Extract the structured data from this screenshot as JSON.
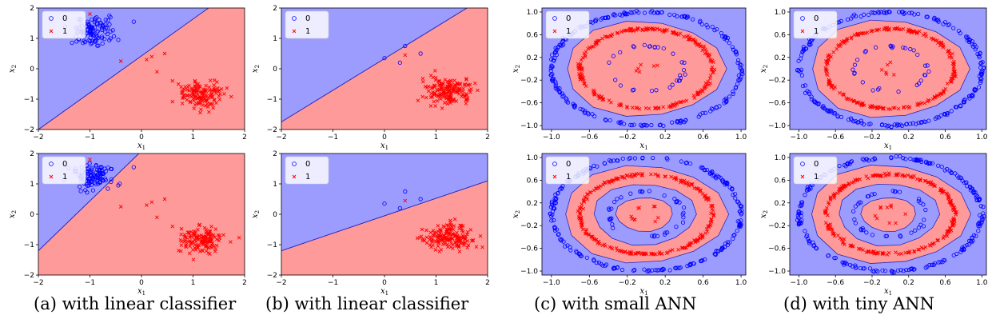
{
  "legend_labels": [
    "0",
    "1"
  ],
  "colors": {
    "class0_fill": "#9c9cff",
    "class1_fill": "#ff9a9a",
    "class0_mark": "#0000ff",
    "class1_mark": "#ff0000",
    "boundary": "#2a2ab8"
  },
  "captions": [
    "(a) with linear classifier",
    "(b) with linear classifier",
    "(c) with small ANN",
    "(d) with tiny ANN"
  ],
  "chart_data": [
    {
      "type": "scatter",
      "panel": "a-top",
      "xlabel": "x1",
      "ylabel": "x2",
      "xlim": [
        -2,
        2
      ],
      "ylim": [
        -2,
        2
      ],
      "xticks": [
        "−2",
        "−1",
        "0",
        "1",
        "2"
      ],
      "yticks": [
        "−2",
        "−1",
        "0",
        "1",
        "2"
      ],
      "decision_boundary": [
        [
          -2.0,
          -2.0
        ],
        [
          1.3,
          2.0
        ]
      ],
      "legend": "top-left",
      "series": [
        {
          "name": "0",
          "marker": "o",
          "cluster": {
            "center": [
              -0.9,
              1.25
            ],
            "spread": [
              0.2,
              0.22
            ],
            "count": 110
          },
          "outliers": [
            [
              -0.15,
              1.55
            ],
            [
              -0.45,
              0.95
            ]
          ]
        },
        {
          "name": "1",
          "marker": "x",
          "cluster": {
            "center": [
              1.2,
              -0.85
            ],
            "spread": [
              0.22,
              0.2
            ],
            "count": 140
          },
          "outliers": [
            [
              -1.0,
              1.8
            ],
            [
              -0.4,
              0.25
            ],
            [
              0.1,
              0.3
            ],
            [
              0.45,
              0.5
            ],
            [
              0.3,
              -0.1
            ],
            [
              0.6,
              -0.4
            ],
            [
              0.9,
              -0.6
            ],
            [
              0.2,
              0.4
            ]
          ]
        }
      ]
    },
    {
      "type": "scatter",
      "panel": "b-top",
      "xlabel": "x1",
      "ylabel": "x2",
      "xlim": [
        -2,
        2
      ],
      "ylim": [
        -2,
        2
      ],
      "xticks": [
        "−2",
        "−1",
        "0",
        "1",
        "2"
      ],
      "yticks": [
        "−2",
        "−1",
        "0",
        "1",
        "2"
      ],
      "decision_boundary": [
        [
          -2.0,
          -1.75
        ],
        [
          1.6,
          2.0
        ]
      ],
      "legend": "top-left",
      "series": [
        {
          "name": "0",
          "marker": "o",
          "cluster": null,
          "outliers": [
            [
              0.0,
              0.35
            ],
            [
              0.3,
              0.2
            ],
            [
              0.4,
              0.75
            ],
            [
              0.7,
              0.5
            ]
          ]
        },
        {
          "name": "1",
          "marker": "x",
          "cluster": {
            "center": [
              1.25,
              -0.75
            ],
            "spread": [
              0.24,
              0.22
            ],
            "count": 170
          },
          "outliers": [
            [
              0.4,
              0.45
            ]
          ]
        }
      ]
    },
    {
      "type": "scatter",
      "panel": "c-top",
      "xlabel": "x1",
      "ylabel": "x2",
      "xlim": [
        -1.1,
        1.05
      ],
      "ylim": [
        -1.07,
        1.07
      ],
      "xticks": [
        "−1.0",
        "−0.6",
        "−0.2",
        "0.2",
        "0.6",
        "1.0"
      ],
      "yticks": [
        "−1.0",
        "−0.6",
        "−0.2",
        "0.2",
        "0.6",
        "1.0"
      ],
      "legend": "top-left",
      "series": [
        {
          "name": "0",
          "marker": "o",
          "rings": [
            {
              "radius": 1.0,
              "count": 220
            },
            {
              "radius": 0.4,
              "count": 30
            }
          ]
        },
        {
          "name": "1",
          "marker": "x",
          "rings": [
            {
              "radius": 0.7,
              "count": 230
            },
            {
              "radius": 0.1,
              "count": 6
            }
          ]
        }
      ],
      "regions": [
        {
          "class": "1",
          "radius": 0.84
        },
        {
          "class": "0",
          "radius": 0.0
        }
      ]
    },
    {
      "type": "scatter",
      "panel": "d-top",
      "xlabel": "x1",
      "ylabel": "x2",
      "xlim": [
        -1.1,
        1.05
      ],
      "ylim": [
        -1.07,
        1.07
      ],
      "xticks": [
        "−1.0",
        "−0.6",
        "−0.2",
        "0.2",
        "0.6",
        "1.0"
      ],
      "yticks": [
        "−1.0",
        "−0.6",
        "−0.2",
        "0.2",
        "0.6",
        "1.0"
      ],
      "legend": "top-left",
      "series": [
        {
          "name": "0",
          "marker": "o",
          "rings": [
            {
              "radius": 1.0,
              "count": 220
            },
            {
              "radius": 0.4,
              "count": 30
            }
          ]
        },
        {
          "name": "1",
          "marker": "x",
          "rings": [
            {
              "radius": 0.7,
              "count": 230
            },
            {
              "radius": 0.1,
              "count": 6
            }
          ]
        }
      ],
      "regions": [
        {
          "class": "1",
          "radius": 0.86
        },
        {
          "class": "0",
          "radius": 0.0
        }
      ]
    },
    {
      "type": "scatter",
      "panel": "a-bottom",
      "xlabel": "x1",
      "ylabel": "x2",
      "xlim": [
        -2,
        2
      ],
      "ylim": [
        -2,
        2
      ],
      "xticks": [
        "−2",
        "−1",
        "0",
        "1",
        "2"
      ],
      "yticks": [
        "−2",
        "−1",
        "0",
        "1",
        "2"
      ],
      "decision_boundary": [
        [
          -2.0,
          -1.2
        ],
        [
          -0.05,
          2.0
        ]
      ],
      "legend": "top-left",
      "series": [
        {
          "name": "0",
          "marker": "o",
          "cluster": {
            "center": [
              -0.9,
              1.25
            ],
            "spread": [
              0.2,
              0.22
            ],
            "count": 110
          },
          "outliers": [
            [
              -0.15,
              1.55
            ],
            [
              -0.45,
              0.95
            ]
          ]
        },
        {
          "name": "1",
          "marker": "x",
          "cluster": {
            "center": [
              1.2,
              -0.85
            ],
            "spread": [
              0.22,
              0.2
            ],
            "count": 140
          },
          "outliers": [
            [
              -1.0,
              1.8
            ],
            [
              -0.4,
              0.25
            ],
            [
              0.1,
              0.3
            ],
            [
              0.45,
              0.5
            ],
            [
              0.3,
              -0.1
            ],
            [
              0.6,
              -0.4
            ],
            [
              0.9,
              -0.6
            ],
            [
              0.2,
              0.4
            ]
          ]
        }
      ]
    },
    {
      "type": "scatter",
      "panel": "b-bottom",
      "xlabel": "x1",
      "ylabel": "x2",
      "xlim": [
        -2,
        2
      ],
      "ylim": [
        -2,
        2
      ],
      "xticks": [
        "−2",
        "−1",
        "0",
        "1",
        "2"
      ],
      "yticks": [
        "−2",
        "−1",
        "0",
        "1",
        "2"
      ],
      "decision_boundary": [
        [
          -2.0,
          -1.2
        ],
        [
          2.0,
          1.1
        ]
      ],
      "legend": "top-left",
      "series": [
        {
          "name": "0",
          "marker": "o",
          "cluster": null,
          "outliers": [
            [
              0.0,
              0.35
            ],
            [
              0.3,
              0.2
            ],
            [
              0.4,
              0.75
            ],
            [
              0.7,
              0.5
            ]
          ]
        },
        {
          "name": "1",
          "marker": "x",
          "cluster": {
            "center": [
              1.25,
              -0.75
            ],
            "spread": [
              0.24,
              0.22
            ],
            "count": 170
          },
          "outliers": [
            [
              0.4,
              0.45
            ]
          ]
        }
      ]
    },
    {
      "type": "scatter",
      "panel": "c-bottom",
      "xlabel": "x1",
      "ylabel": "x2",
      "xlim": [
        -1.1,
        1.05
      ],
      "ylim": [
        -1.07,
        1.07
      ],
      "xticks": [
        "−1.0",
        "−0.6",
        "−0.2",
        "0.2",
        "0.6",
        "1.0"
      ],
      "yticks": [
        "−1.0",
        "−0.6",
        "−0.2",
        "0.2",
        "0.6",
        "1.0"
      ],
      "legend": "top-left",
      "series": [
        {
          "name": "0",
          "marker": "o",
          "rings": [
            {
              "radius": 1.0,
              "count": 220
            },
            {
              "radius": 0.4,
              "count": 36
            }
          ]
        },
        {
          "name": "1",
          "marker": "x",
          "rings": [
            {
              "radius": 0.7,
              "count": 230
            },
            {
              "radius": 0.15,
              "count": 10
            }
          ]
        }
      ],
      "regions": [
        {
          "class": "1",
          "radius": 0.86
        },
        {
          "class": "0",
          "radius": 0.54
        },
        {
          "class": "1",
          "radius": 0.3
        }
      ]
    },
    {
      "type": "scatter",
      "panel": "d-bottom",
      "xlabel": "x1",
      "ylabel": "x2",
      "xlim": [
        -1.1,
        1.05
      ],
      "ylim": [
        -1.07,
        1.07
      ],
      "xticks": [
        "−1.0",
        "−0.6",
        "−0.2",
        "0.2",
        "0.6",
        "1.0"
      ],
      "yticks": [
        "−1.0",
        "−0.6",
        "−0.2",
        "0.2",
        "0.6",
        "1.0"
      ],
      "legend": "top-left",
      "series": [
        {
          "name": "0",
          "marker": "o",
          "rings": [
            {
              "radius": 1.0,
              "count": 220
            },
            {
              "radius": 0.4,
              "count": 36
            }
          ]
        },
        {
          "name": "1",
          "marker": "x",
          "rings": [
            {
              "radius": 0.7,
              "count": 230
            },
            {
              "radius": 0.15,
              "count": 10
            }
          ]
        }
      ],
      "regions": [
        {
          "class": "1",
          "radius": 0.87
        },
        {
          "class": "0",
          "radius": 0.55
        },
        {
          "class": "1",
          "radius": 0.3
        }
      ]
    }
  ]
}
